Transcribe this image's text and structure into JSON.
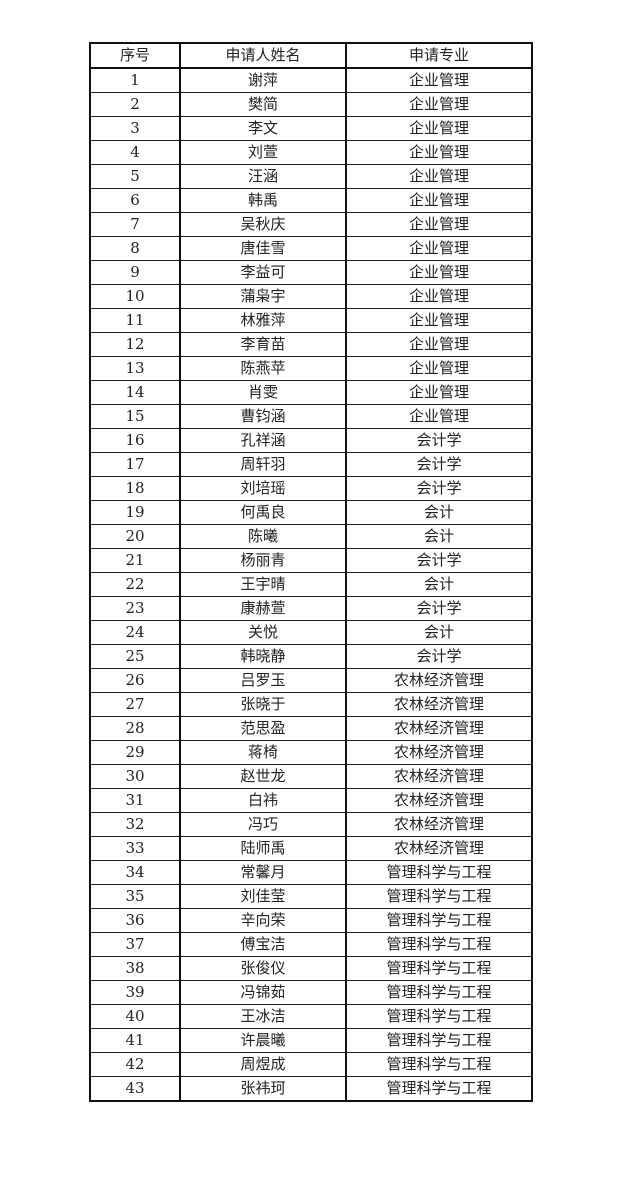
{
  "table": {
    "headers": [
      "序号",
      "申请人姓名",
      "申请专业"
    ],
    "rows": [
      [
        "1",
        "谢萍",
        "企业管理"
      ],
      [
        "2",
        "樊简",
        "企业管理"
      ],
      [
        "3",
        "李文",
        "企业管理"
      ],
      [
        "4",
        "刘萱",
        "企业管理"
      ],
      [
        "5",
        "汪涵",
        "企业管理"
      ],
      [
        "6",
        "韩禹",
        "企业管理"
      ],
      [
        "7",
        "吴秋庆",
        "企业管理"
      ],
      [
        "8",
        "唐佳雪",
        "企业管理"
      ],
      [
        "9",
        "李益可",
        "企业管理"
      ],
      [
        "10",
        "蒲枭宇",
        "企业管理"
      ],
      [
        "11",
        "林雅萍",
        "企业管理"
      ],
      [
        "12",
        "李育苗",
        "企业管理"
      ],
      [
        "13",
        "陈燕苹",
        "企业管理"
      ],
      [
        "14",
        "肖雯",
        "企业管理"
      ],
      [
        "15",
        "曹钧涵",
        "企业管理"
      ],
      [
        "16",
        "孔祥涵",
        "会计学"
      ],
      [
        "17",
        "周轩羽",
        "会计学"
      ],
      [
        "18",
        "刘培瑶",
        "会计学"
      ],
      [
        "19",
        "何禹良",
        "会计"
      ],
      [
        "20",
        "陈曦",
        "会计"
      ],
      [
        "21",
        "杨丽青",
        "会计学"
      ],
      [
        "22",
        "王宇晴",
        "会计"
      ],
      [
        "23",
        "康赫萱",
        "会计学"
      ],
      [
        "24",
        "关悦",
        "会计"
      ],
      [
        "25",
        "韩晓静",
        "会计学"
      ],
      [
        "26",
        "吕罗玉",
        "农林经济管理"
      ],
      [
        "27",
        "张晓于",
        "农林经济管理"
      ],
      [
        "28",
        "范思盈",
        "农林经济管理"
      ],
      [
        "29",
        "蒋椅",
        "农林经济管理"
      ],
      [
        "30",
        "赵世龙",
        "农林经济管理"
      ],
      [
        "31",
        "白祎",
        "农林经济管理"
      ],
      [
        "32",
        "冯巧",
        "农林经济管理"
      ],
      [
        "33",
        "陆师禹",
        "农林经济管理"
      ],
      [
        "34",
        "常馨月",
        "管理科学与工程"
      ],
      [
        "35",
        "刘佳莹",
        "管理科学与工程"
      ],
      [
        "36",
        "辛向荣",
        "管理科学与工程"
      ],
      [
        "37",
        "傅宝洁",
        "管理科学与工程"
      ],
      [
        "38",
        "张俊仪",
        "管理科学与工程"
      ],
      [
        "39",
        "冯锦茹",
        "管理科学与工程"
      ],
      [
        "40",
        "王冰洁",
        "管理科学与工程"
      ],
      [
        "41",
        "许晨曦",
        "管理科学与工程"
      ],
      [
        "42",
        "周煜成",
        "管理科学与工程"
      ],
      [
        "43",
        "张祎珂",
        "管理科学与工程"
      ]
    ]
  }
}
